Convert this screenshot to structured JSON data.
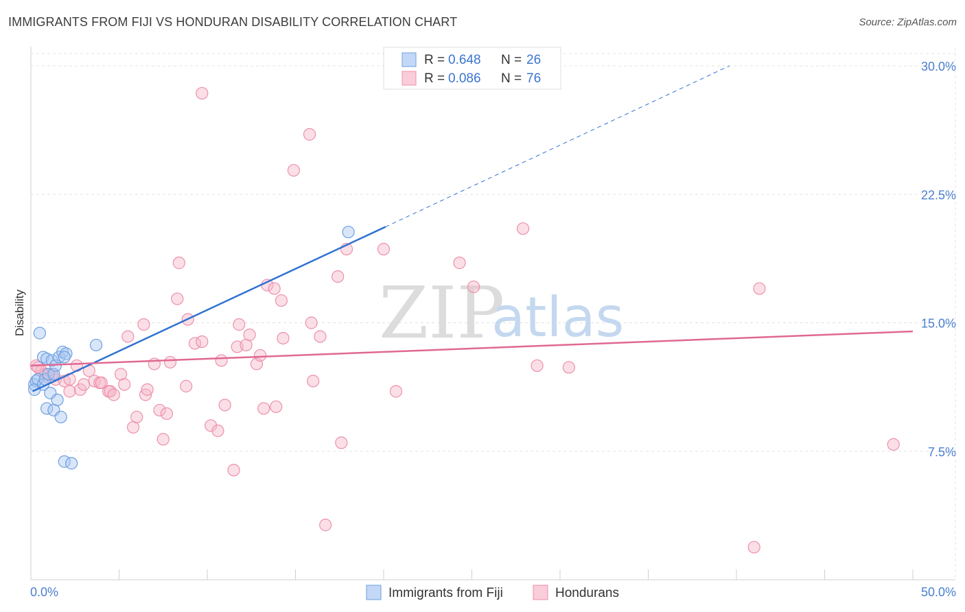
{
  "title": "IMMIGRANTS FROM FIJI VS HONDURAN DISABILITY CORRELATION CHART",
  "source": "Source: ZipAtlas.com",
  "watermark": {
    "zip": "ZIP",
    "atlas": "atlas"
  },
  "chart_data": {
    "type": "scatter",
    "ylabel": "Disability",
    "xlim": [
      0,
      50
    ],
    "ylim": [
      0,
      31
    ],
    "x_tick_labels": [
      "0.0%",
      "50.0%"
    ],
    "y_ticks": [
      7.5,
      15.0,
      22.5,
      30.0
    ],
    "y_tick_labels": [
      "7.5%",
      "15.0%",
      "22.5%",
      "30.0%"
    ],
    "grid": true,
    "legend": {
      "position": "top-center",
      "rows": [
        {
          "r_label": "R = ",
          "r": "0.648",
          "n_label": "N = ",
          "n": "26",
          "color": "#aac8f2"
        },
        {
          "r_label": "R = ",
          "r": "0.086",
          "n_label": "N = ",
          "n": "76",
          "color": "#f7b8ca"
        }
      ]
    },
    "series": [
      {
        "name": "Immigrants from Fiji",
        "color": "#aac8f2",
        "stroke": "#6d9fdf",
        "trend_color": "#2e72d2",
        "trend": {
          "x0": 0.1,
          "y0": 11.0,
          "x1": 20.1,
          "y1": 20.6,
          "dash_to_x": 39.6,
          "dash_to_y": 30.0
        },
        "points": [
          [
            0.2,
            11.4
          ],
          [
            0.3,
            11.6
          ],
          [
            0.2,
            11.1
          ],
          [
            0.4,
            11.7
          ],
          [
            0.5,
            14.4
          ],
          [
            0.7,
            11.4
          ],
          [
            0.8,
            11.7
          ],
          [
            0.7,
            13.0
          ],
          [
            0.9,
            12.9
          ],
          [
            1.0,
            12.0
          ],
          [
            0.9,
            10.0
          ],
          [
            1.1,
            10.9
          ],
          [
            1.3,
            12.0
          ],
          [
            1.2,
            12.8
          ],
          [
            1.4,
            12.5
          ],
          [
            1.3,
            9.9
          ],
          [
            1.5,
            10.5
          ],
          [
            1.6,
            13.0
          ],
          [
            1.7,
            9.5
          ],
          [
            1.8,
            13.3
          ],
          [
            2.0,
            13.2
          ],
          [
            1.9,
            13.0
          ],
          [
            1.9,
            6.9
          ],
          [
            2.3,
            6.8
          ],
          [
            3.7,
            13.7
          ],
          [
            18.0,
            20.3
          ]
        ]
      },
      {
        "name": "Hondurans",
        "color": "#f7b8ca",
        "stroke": "#ec90aa",
        "trend_color": "#e06892",
        "trend": {
          "x0": 0,
          "y0": 12.5,
          "x1": 50,
          "y1": 14.5
        },
        "points": [
          [
            0.3,
            12.5
          ],
          [
            0.6,
            12.2
          ],
          [
            0.8,
            12.0
          ],
          [
            1.0,
            11.8
          ],
          [
            1.2,
            12.0
          ],
          [
            1.4,
            11.7
          ],
          [
            1.9,
            11.6
          ],
          [
            2.2,
            11.7
          ],
          [
            2.2,
            11.0
          ],
          [
            2.6,
            12.5
          ],
          [
            2.8,
            11.1
          ],
          [
            3.0,
            11.4
          ],
          [
            3.3,
            12.2
          ],
          [
            3.6,
            11.6
          ],
          [
            3.9,
            11.5
          ],
          [
            4.0,
            11.5
          ],
          [
            4.4,
            11.0
          ],
          [
            4.5,
            11.0
          ],
          [
            4.7,
            10.8
          ],
          [
            5.1,
            12.0
          ],
          [
            5.3,
            11.4
          ],
          [
            5.5,
            14.2
          ],
          [
            5.8,
            8.9
          ],
          [
            6.0,
            9.5
          ],
          [
            6.4,
            14.9
          ],
          [
            6.5,
            10.8
          ],
          [
            6.6,
            11.1
          ],
          [
            7.0,
            12.6
          ],
          [
            7.3,
            9.9
          ],
          [
            7.5,
            8.2
          ],
          [
            7.7,
            9.7
          ],
          [
            7.9,
            12.7
          ],
          [
            8.3,
            16.4
          ],
          [
            8.4,
            18.5
          ],
          [
            8.8,
            11.3
          ],
          [
            8.9,
            15.2
          ],
          [
            9.3,
            13.8
          ],
          [
            9.7,
            13.9
          ],
          [
            9.7,
            28.4
          ],
          [
            10.2,
            9.0
          ],
          [
            10.6,
            8.7
          ],
          [
            10.8,
            12.8
          ],
          [
            11.0,
            10.2
          ],
          [
            11.5,
            6.4
          ],
          [
            11.7,
            13.6
          ],
          [
            11.8,
            14.9
          ],
          [
            12.2,
            13.7
          ],
          [
            12.4,
            14.3
          ],
          [
            12.8,
            12.6
          ],
          [
            13.0,
            13.1
          ],
          [
            13.2,
            10.0
          ],
          [
            13.4,
            17.2
          ],
          [
            13.8,
            17.0
          ],
          [
            13.9,
            10.1
          ],
          [
            14.2,
            16.3
          ],
          [
            14.3,
            14.1
          ],
          [
            14.9,
            23.9
          ],
          [
            15.8,
            26.0
          ],
          [
            15.9,
            15.0
          ],
          [
            16.0,
            11.6
          ],
          [
            16.4,
            14.2
          ],
          [
            16.7,
            3.2
          ],
          [
            17.4,
            17.7
          ],
          [
            17.6,
            8.0
          ],
          [
            17.9,
            19.3
          ],
          [
            20.0,
            19.3
          ],
          [
            20.7,
            11.0
          ],
          [
            24.3,
            18.5
          ],
          [
            25.1,
            17.1
          ],
          [
            27.9,
            20.5
          ],
          [
            28.7,
            12.5
          ],
          [
            30.5,
            12.4
          ],
          [
            41.3,
            17.0
          ],
          [
            41.0,
            1.9
          ],
          [
            48.9,
            7.9
          ],
          [
            0.4,
            12.4
          ]
        ]
      }
    ]
  }
}
